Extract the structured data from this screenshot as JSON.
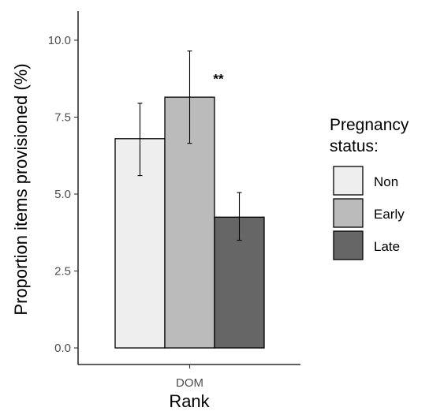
{
  "chart_data": {
    "type": "bar",
    "title": "",
    "xlabel": "Rank",
    "ylabel": "Proportion items provisioned (%)",
    "categories": [
      "DOM"
    ],
    "ylim": [
      0,
      11.0
    ],
    "yticks": [
      0.0,
      2.5,
      5.0,
      7.5,
      10.0
    ],
    "ytick_labels": [
      "0.0",
      "2.5",
      "5.0",
      "7.5",
      "10.0"
    ],
    "grid": false,
    "series": [
      {
        "name": "Non",
        "values": [
          6.8
        ],
        "error_low": [
          5.6
        ],
        "error_high": [
          7.95
        ],
        "color": "#eeeeee"
      },
      {
        "name": "Early",
        "values": [
          8.15
        ],
        "error_low": [
          6.65
        ],
        "error_high": [
          9.65
        ],
        "color": "#bbbbbb"
      },
      {
        "name": "Late",
        "values": [
          4.25
        ],
        "error_low": [
          3.5
        ],
        "error_high": [
          5.05
        ],
        "color": "#666666"
      }
    ],
    "annotations": [
      {
        "text": "**",
        "series": "Early"
      }
    ],
    "legend": {
      "title_lines": [
        "Pregnancy",
        "status:"
      ],
      "position": "right"
    }
  }
}
